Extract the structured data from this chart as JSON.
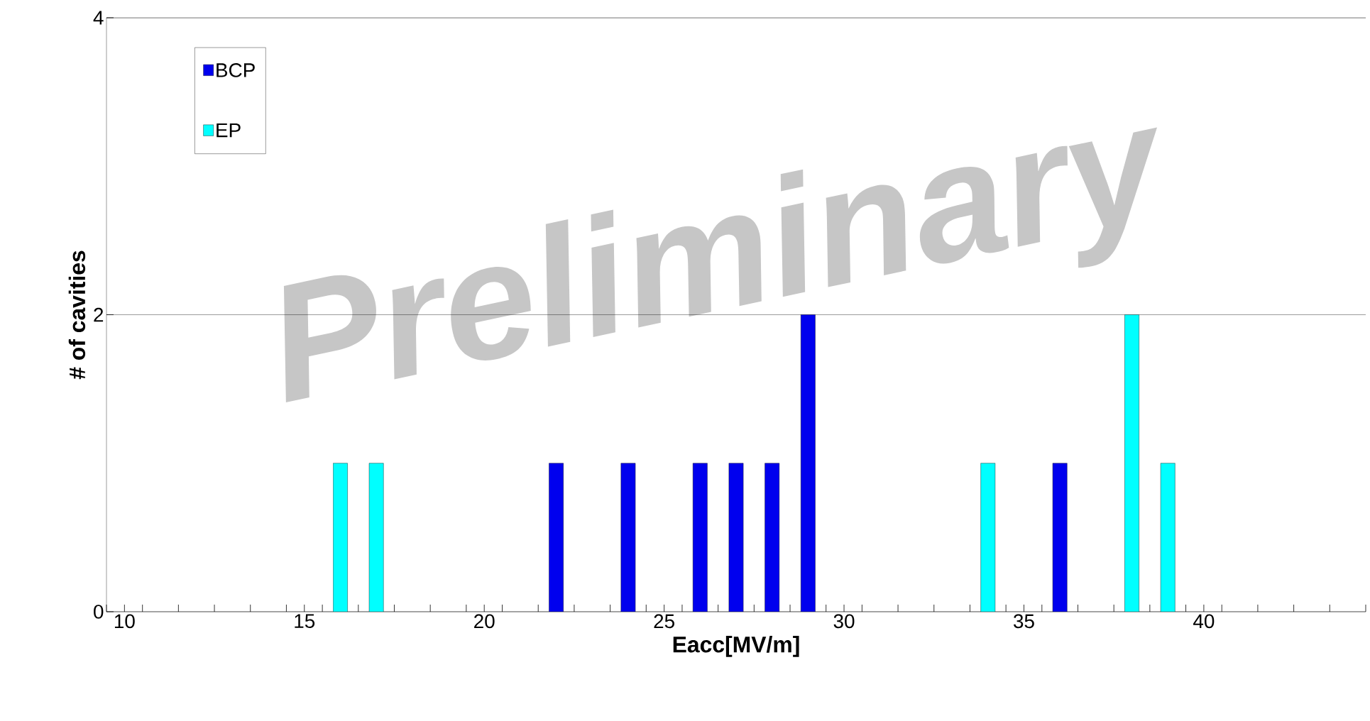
{
  "chart_data": {
    "type": "bar",
    "xlabel": "Eacc[MV/m]",
    "ylabel": "# of cavities",
    "annotations": [
      "Preliminary"
    ],
    "xlim": [
      9.5,
      44.5
    ],
    "ylim": [
      0,
      4
    ],
    "xticks": [
      10,
      15,
      20,
      25,
      30,
      35,
      40,
      {
        "value": 9.5,
        "label": null
      },
      {
        "value": 10.5,
        "label": null
      },
      {
        "value": 11.5,
        "label": null
      },
      {
        "value": 12.5,
        "label": null
      },
      {
        "value": 13.5,
        "label": null
      },
      {
        "value": 14.5,
        "label": null
      },
      {
        "value": 15.5,
        "label": null
      },
      {
        "value": 16.5,
        "label": null
      },
      {
        "value": 17.5,
        "label": null
      },
      {
        "value": 18.5,
        "label": null
      },
      {
        "value": 19.5,
        "label": null
      },
      {
        "value": 20.5,
        "label": null
      },
      {
        "value": 21.5,
        "label": null
      },
      {
        "value": 22.5,
        "label": null
      },
      {
        "value": 23.5,
        "label": null
      },
      {
        "value": 24.5,
        "label": null
      },
      {
        "value": 25.5,
        "label": null
      },
      {
        "value": 26.5,
        "label": null
      },
      {
        "value": 27.5,
        "label": null
      },
      {
        "value": 28.5,
        "label": null
      },
      {
        "value": 29.5,
        "label": null
      },
      {
        "value": 30.5,
        "label": null
      },
      {
        "value": 31.5,
        "label": null
      },
      {
        "value": 32.5,
        "label": null
      },
      {
        "value": 33.5,
        "label": null
      },
      {
        "value": 34.5,
        "label": null
      },
      {
        "value": 35.5,
        "label": null
      },
      {
        "value": 36.5,
        "label": null
      },
      {
        "value": 37.5,
        "label": null
      },
      {
        "value": 38.5,
        "label": null
      },
      {
        "value": 39.5,
        "label": null
      },
      {
        "value": 40.5,
        "label": null
      },
      {
        "value": 41.5,
        "label": null
      },
      {
        "value": 42.5,
        "label": null
      },
      {
        "value": 43.5,
        "label": null
      },
      {
        "value": 44.5,
        "label": null
      }
    ],
    "yticks": [
      0,
      2,
      4
    ],
    "grid": "y",
    "legend": "top left",
    "series": [
      {
        "name": "BCP",
        "color": "#0000ee",
        "x": [
          22,
          24,
          26,
          27,
          28,
          29,
          36
        ],
        "values": [
          1,
          1,
          1,
          1,
          1,
          2,
          1
        ]
      },
      {
        "name": "EP",
        "color": "#00ffff",
        "x": [
          16,
          17,
          34,
          38,
          39
        ],
        "values": [
          1,
          1,
          1,
          2,
          1
        ]
      }
    ]
  }
}
